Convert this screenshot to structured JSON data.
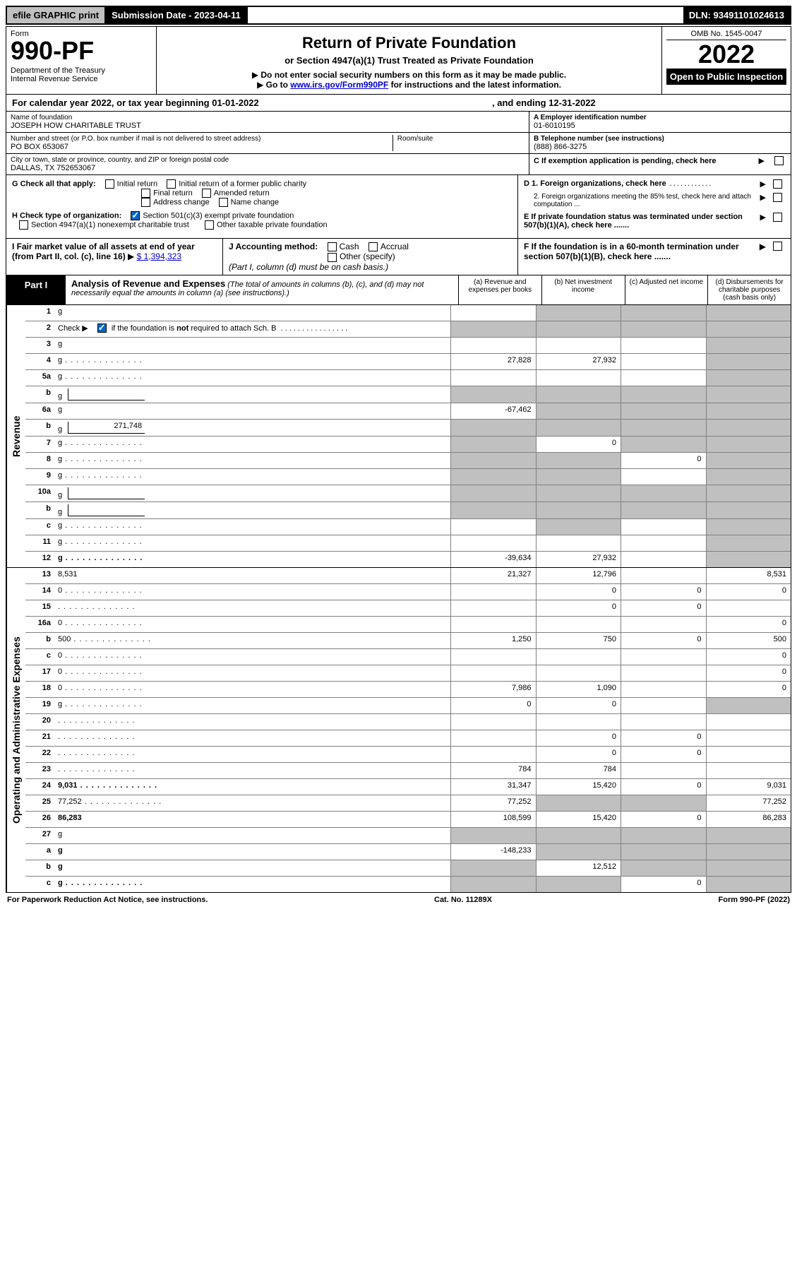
{
  "topbar": {
    "efile": "efile GRAPHIC print",
    "subdate": "Submission Date - 2023-04-11",
    "dln": "DLN: 93491101024613"
  },
  "header": {
    "form_label": "Form",
    "form_number": "990-PF",
    "dept": "Department of the Treasury\nInternal Revenue Service",
    "title": "Return of Private Foundation",
    "subtitle": "or Section 4947(a)(1) Trust Treated as Private Foundation",
    "instr1": "Do not enter social security numbers on this form as it may be made public.",
    "instr2_pre": "Go to ",
    "instr2_link": "www.irs.gov/Form990PF",
    "instr2_post": " for instructions and the latest information.",
    "omb": "OMB No. 1545-0047",
    "year": "2022",
    "open": "Open to Public Inspection"
  },
  "calyear": {
    "left": "For calendar year 2022, or tax year beginning 01-01-2022",
    "right": ", and ending 12-31-2022"
  },
  "info": {
    "name_label": "Name of foundation",
    "name": "JOSEPH HOW CHARITABLE TRUST",
    "addr_label": "Number and street (or P.O. box number if mail is not delivered to street address)",
    "addr": "PO BOX 653067",
    "room_label": "Room/suite",
    "room": "",
    "city_label": "City or town, state or province, country, and ZIP or foreign postal code",
    "city": "DALLAS, TX  752653067",
    "ein_label": "A Employer identification number",
    "ein": "01-6010195",
    "phone_label": "B Telephone number (see instructions)",
    "phone": "(888) 866-3275",
    "c_label": "C If exemption application is pending, check here",
    "d1": "D 1. Foreign organizations, check here",
    "d2": "2. Foreign organizations meeting the 85% test, check here and attach computation ...",
    "e": "E If private foundation status was terminated under section 507(b)(1)(A), check here .......",
    "f": "F If the foundation is in a 60-month termination under section 507(b)(1)(B), check here ......."
  },
  "checks": {
    "g_label": "G Check all that apply:",
    "g_initial": "Initial return",
    "g_initial_former": "Initial return of a former public charity",
    "g_final": "Final return",
    "g_amended": "Amended return",
    "g_address": "Address change",
    "g_name": "Name change",
    "h_label": "H Check type of organization:",
    "h_501c3": "Section 501(c)(3) exempt private foundation",
    "h_4947": "Section 4947(a)(1) nonexempt charitable trust",
    "h_other_tax": "Other taxable private foundation",
    "i_label": "I Fair market value of all assets at end of year (from Part II, col. (c), line 16)",
    "i_value": "$  1,394,323",
    "j_label": "J Accounting method:",
    "j_cash": "Cash",
    "j_accrual": "Accrual",
    "j_other": "Other (specify)",
    "j_note": "(Part I, column (d) must be on cash basis.)"
  },
  "part1": {
    "label": "Part I",
    "title": "Analysis of Revenue and Expenses",
    "note": "(The total of amounts in columns (b), (c), and (d) may not necessarily equal the amounts in column (a) (see instructions).)",
    "col_a": "(a)  Revenue and expenses per books",
    "col_b": "(b)  Net investment income",
    "col_c": "(c)  Adjusted net income",
    "col_d": "(d)  Disbursements for charitable purposes (cash basis only)"
  },
  "sections": {
    "revenue": "Revenue",
    "expenses": "Operating and Administrative Expenses"
  },
  "rows": [
    {
      "n": "1",
      "d": "g",
      "a": "",
      "b": "g",
      "c": "g"
    },
    {
      "n": "2",
      "d": "g",
      "dots": true,
      "a": "g",
      "b": "g",
      "c": "g",
      "bold_parts": true
    },
    {
      "n": "3",
      "d": "g",
      "a": "",
      "b": "",
      "c": ""
    },
    {
      "n": "4",
      "d": "g",
      "dots": true,
      "a": "27,828",
      "b": "27,932",
      "c": ""
    },
    {
      "n": "5a",
      "d": "g",
      "dots": true,
      "a": "",
      "b": "",
      "c": ""
    },
    {
      "n": "b",
      "d": "g",
      "inline": "",
      "a": "g",
      "b": "g",
      "c": "g"
    },
    {
      "n": "6a",
      "d": "g",
      "a": "-67,462",
      "b": "g",
      "c": "g"
    },
    {
      "n": "b",
      "d": "g",
      "inline": "271,748",
      "a": "g",
      "b": "g",
      "c": "g"
    },
    {
      "n": "7",
      "d": "g",
      "dots": true,
      "a": "g",
      "b": "0",
      "c": "g"
    },
    {
      "n": "8",
      "d": "g",
      "dots": true,
      "a": "g",
      "b": "g",
      "c": "0"
    },
    {
      "n": "9",
      "d": "g",
      "dots": true,
      "a": "g",
      "b": "g",
      "c": ""
    },
    {
      "n": "10a",
      "d": "g",
      "inline": "",
      "a": "g",
      "b": "g",
      "c": "g"
    },
    {
      "n": "b",
      "d": "g",
      "dots": true,
      "inline": "",
      "a": "g",
      "b": "g",
      "c": "g"
    },
    {
      "n": "c",
      "d": "g",
      "dots": true,
      "a": "",
      "b": "g",
      "c": ""
    },
    {
      "n": "11",
      "d": "g",
      "dots": true,
      "a": "",
      "b": "",
      "c": ""
    },
    {
      "n": "12",
      "d": "g",
      "dots": true,
      "bold": true,
      "a": "-39,634",
      "b": "27,932",
      "c": ""
    }
  ],
  "rows_exp": [
    {
      "n": "13",
      "d": "8,531",
      "a": "21,327",
      "b": "12,796",
      "c": ""
    },
    {
      "n": "14",
      "d": "0",
      "dots": true,
      "a": "",
      "b": "0",
      "c": "0"
    },
    {
      "n": "15",
      "d": "",
      "dots": true,
      "a": "",
      "b": "0",
      "c": "0"
    },
    {
      "n": "16a",
      "d": "0",
      "dots": true,
      "a": "",
      "b": "",
      "c": ""
    },
    {
      "n": "b",
      "d": "500",
      "dots": true,
      "a": "1,250",
      "b": "750",
      "c": "0"
    },
    {
      "n": "c",
      "d": "0",
      "dots": true,
      "a": "",
      "b": "",
      "c": ""
    },
    {
      "n": "17",
      "d": "0",
      "dots": true,
      "a": "",
      "b": "",
      "c": ""
    },
    {
      "n": "18",
      "d": "0",
      "dots": true,
      "a": "7,986",
      "b": "1,090",
      "c": ""
    },
    {
      "n": "19",
      "d": "g",
      "dots": true,
      "a": "0",
      "b": "0",
      "c": ""
    },
    {
      "n": "20",
      "d": "",
      "dots": true,
      "a": "",
      "b": "",
      "c": ""
    },
    {
      "n": "21",
      "d": "",
      "dots": true,
      "a": "",
      "b": "0",
      "c": "0"
    },
    {
      "n": "22",
      "d": "",
      "dots": true,
      "a": "",
      "b": "0",
      "c": "0"
    },
    {
      "n": "23",
      "d": "",
      "dots": true,
      "a": "784",
      "b": "784",
      "c": ""
    },
    {
      "n": "24",
      "d": "9,031",
      "dots": true,
      "bold": true,
      "a": "31,347",
      "b": "15,420",
      "c": "0"
    },
    {
      "n": "25",
      "d": "77,252",
      "dots": true,
      "a": "77,252",
      "b": "g",
      "c": "g"
    },
    {
      "n": "26",
      "d": "86,283",
      "bold": true,
      "a": "108,599",
      "b": "15,420",
      "c": "0"
    },
    {
      "n": "27",
      "d": "g",
      "a": "g",
      "b": "g",
      "c": "g"
    },
    {
      "n": "a",
      "d": "g",
      "bold": true,
      "a": "-148,233",
      "b": "g",
      "c": "g"
    },
    {
      "n": "b",
      "d": "g",
      "bold": true,
      "a": "g",
      "b": "12,512",
      "c": "g"
    },
    {
      "n": "c",
      "d": "g",
      "dots": true,
      "bold": true,
      "a": "g",
      "b": "g",
      "c": "0"
    }
  ],
  "footer": {
    "left": "For Paperwork Reduction Act Notice, see instructions.",
    "center": "Cat. No. 11289X",
    "right": "Form 990-PF (2022)"
  },
  "colors": {
    "grey_cell": "#c0c0c0",
    "link": "#0000cc",
    "check_blue": "#0066cc"
  }
}
